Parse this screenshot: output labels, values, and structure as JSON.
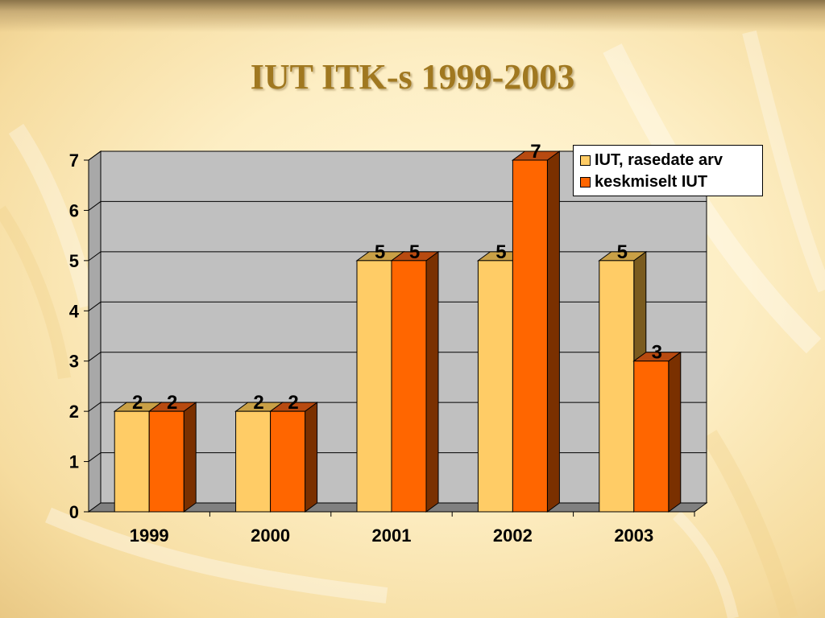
{
  "title": "IUT ITK-s 1999-2003",
  "colors": {
    "series1": "#ffcc66",
    "series1_side": "#7a5b1f",
    "series1_top": "#c9a046",
    "series2": "#ff6600",
    "series2_side": "#7a3000",
    "series2_top": "#b84a10",
    "plot_bg": "#c0c0c0",
    "floor": "#808080"
  },
  "chart_data": {
    "type": "bar",
    "categories": [
      "1999",
      "2000",
      "2001",
      "2002",
      "2003"
    ],
    "series": [
      {
        "name": "IUT, rasedate arv",
        "values": [
          2,
          2,
          5,
          5,
          5
        ]
      },
      {
        "name": "keskmiselt IUT",
        "values": [
          2,
          2,
          5,
          7,
          3
        ]
      }
    ],
    "ylim": [
      0,
      7
    ],
    "yticks": [
      0,
      1,
      2,
      3,
      4,
      5,
      6,
      7
    ],
    "grid": true,
    "legend_position": "top-right",
    "data_labels": true,
    "three_d": true
  },
  "legend": {
    "items": [
      {
        "label": "IUT, rasedate arv"
      },
      {
        "label": "keskmiselt IUT"
      }
    ]
  }
}
